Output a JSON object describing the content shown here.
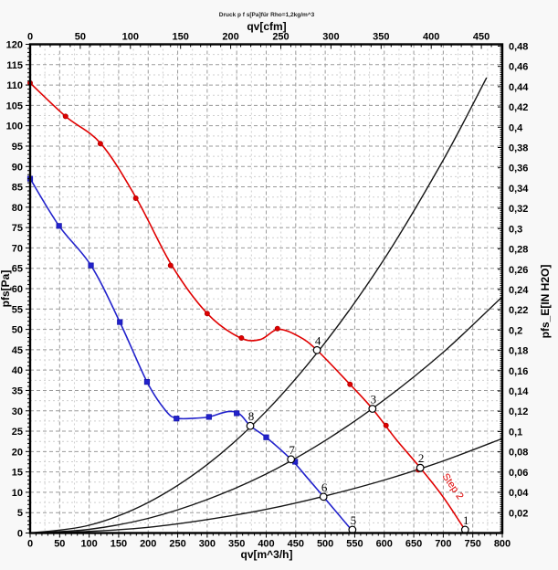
{
  "chart_data": {
    "type": "line",
    "title": "Druck p f s[Pa]für Rho=1,2kg/m^3",
    "grid": true,
    "legend": "none",
    "axes": {
      "bottom": {
        "label": "qv[m^3/h]",
        "min": 0,
        "max": 800,
        "major_step": 50,
        "minor_step": 10,
        "tick_labels": [
          "0",
          "50",
          "100",
          "150",
          "200",
          "250",
          "300",
          "350",
          "400",
          "450",
          "500",
          "550",
          "600",
          "650",
          "700",
          "750",
          "800"
        ]
      },
      "top": {
        "label": "qv[cfm]",
        "min": 0,
        "max": 470.8,
        "major_step": 50,
        "minor_step": 10,
        "m3h_per_cfm": 1.69901,
        "tick_labels": [
          "0",
          "50",
          "100",
          "150",
          "200",
          "250",
          "300",
          "350",
          "400",
          "450"
        ]
      },
      "left": {
        "label": "pfs[Pa]",
        "min": 0,
        "max": 120,
        "major_step": 5,
        "minor_step": 1,
        "tick_labels": [
          "0",
          "5",
          "10",
          "15",
          "20",
          "25",
          "30",
          "35",
          "40",
          "45",
          "50",
          "55",
          "60",
          "65",
          "70",
          "75",
          "80",
          "85",
          "90",
          "95",
          "100",
          "105",
          "110",
          "115",
          "120"
        ]
      },
      "right": {
        "label": "pfs_E[IN H2O]",
        "min": 0,
        "max": 0.48,
        "major_step": 0.02,
        "minor_step": 0.002,
        "pa_per_inh2o": 249.089,
        "tick_labels": [
          "0,02",
          "0,04",
          "0,06",
          "0,08",
          "0,1",
          "0,12",
          "0,14",
          "0,16",
          "0,18",
          "0,2",
          "0,22",
          "0,24",
          "0,26",
          "0,28",
          "0,3",
          "0,32",
          "0,34",
          "0,36",
          "0,38",
          "0,4",
          "0,42",
          "0,44",
          "0,46",
          "0,48"
        ]
      }
    },
    "series": [
      {
        "name": "system-curve-steep",
        "color": "#161616",
        "width": 1.4,
        "marker": "none",
        "smooth": true,
        "points": [
          [
            0,
            0
          ],
          [
            100,
            1.9
          ],
          [
            200,
            7.5
          ],
          [
            300,
            16.8
          ],
          [
            400,
            29.9
          ],
          [
            500,
            46.8
          ],
          [
            600,
            67.3
          ],
          [
            700,
            91.6
          ],
          [
            773,
            111.7
          ]
        ]
      },
      {
        "name": "system-curve-middle",
        "color": "#161616",
        "width": 1.4,
        "marker": "none",
        "smooth": true,
        "points": [
          [
            0,
            0
          ],
          [
            100,
            0.9
          ],
          [
            200,
            3.6
          ],
          [
            300,
            8.2
          ],
          [
            400,
            14.5
          ],
          [
            500,
            22.7
          ],
          [
            600,
            32.7
          ],
          [
            700,
            44.4
          ],
          [
            800,
            58.0
          ]
        ]
      },
      {
        "name": "system-curve-flat",
        "color": "#161616",
        "width": 1.4,
        "marker": "none",
        "smooth": true,
        "points": [
          [
            0,
            0
          ],
          [
            100,
            0.4
          ],
          [
            200,
            1.4
          ],
          [
            300,
            3.3
          ],
          [
            400,
            5.8
          ],
          [
            500,
            9.1
          ],
          [
            600,
            13.0
          ],
          [
            700,
            17.7
          ],
          [
            800,
            23.2
          ]
        ]
      },
      {
        "name": "fan-curve-step-1-blue",
        "color": "#2222cc",
        "marker_stroke": "#1515aa",
        "width": 1.6,
        "marker": "square",
        "smooth": true,
        "points": [
          [
            0,
            87
          ],
          [
            49,
            75.4
          ],
          [
            103,
            65.7
          ],
          [
            152,
            51.8
          ],
          [
            198,
            37.1
          ],
          [
            230,
            30.0
          ],
          [
            248,
            28.2
          ],
          [
            280,
            28.2
          ],
          [
            303,
            28.5
          ],
          [
            335,
            29.8
          ],
          [
            355,
            29.2
          ],
          [
            373,
            26.3
          ],
          [
            400,
            23.5
          ],
          [
            442,
            18.1
          ],
          [
            470,
            13.5
          ],
          [
            497,
            8.9
          ],
          [
            546,
            0.5
          ]
        ],
        "marker_points": [
          [
            0,
            87
          ],
          [
            49,
            75.4
          ],
          [
            103,
            65.7
          ],
          [
            152,
            51.8
          ],
          [
            198,
            37.1
          ],
          [
            248,
            28.1
          ],
          [
            303,
            28.5
          ],
          [
            350,
            29.4
          ],
          [
            400,
            23.5
          ],
          [
            449,
            17.5
          ]
        ]
      },
      {
        "name": "fan-curve-step-2-red",
        "color": "#e00000",
        "marker_stroke": "#b00000",
        "width": 1.6,
        "marker": "circle",
        "smooth": true,
        "points": [
          [
            0,
            110.5
          ],
          [
            60,
            102.3
          ],
          [
            120,
            95.6
          ],
          [
            180,
            82.2
          ],
          [
            240,
            65.7
          ],
          [
            300,
            53.9
          ],
          [
            355,
            48.0
          ],
          [
            390,
            47.5
          ],
          [
            420,
            50.0
          ],
          [
            455,
            48.3
          ],
          [
            486,
            44.9
          ],
          [
            542,
            36.5
          ],
          [
            580,
            30.5
          ],
          [
            620,
            23.0
          ],
          [
            661,
            16.0
          ],
          [
            700,
            8.8
          ],
          [
            738,
            0.5
          ]
        ],
        "marker_points": [
          [
            0,
            110.5
          ],
          [
            60,
            102.3
          ],
          [
            119,
            95.6
          ],
          [
            179,
            82.2
          ],
          [
            238,
            65.7
          ],
          [
            300,
            53.9
          ],
          [
            358,
            47.9
          ],
          [
            419,
            50.2
          ],
          [
            542,
            36.5
          ],
          [
            603,
            26.4
          ],
          [
            658,
            15.5
          ]
        ]
      }
    ],
    "operating_points": [
      {
        "label": "1",
        "q": 737,
        "p": 0.8
      },
      {
        "label": "2",
        "q": 661,
        "p": 16.0
      },
      {
        "label": "3",
        "q": 580,
        "p": 30.5
      },
      {
        "label": "4",
        "q": 486,
        "p": 44.9
      },
      {
        "label": "5",
        "q": 546,
        "p": 0.8
      },
      {
        "label": "6",
        "q": 497,
        "p": 8.9
      },
      {
        "label": "7",
        "q": 442,
        "p": 18.1
      },
      {
        "label": "8",
        "q": 373,
        "p": 26.3
      }
    ],
    "annotations": [
      {
        "text": "Step 2",
        "q": 712,
        "p": 11.0,
        "angle": 55,
        "color": "#e00000"
      }
    ],
    "colors": {
      "background": "#f8f8f8",
      "plot_background": "#ffffff",
      "axis": "#000000",
      "grid_major": "#9a9a9a",
      "grid_minor": "#cfcfcf"
    }
  }
}
